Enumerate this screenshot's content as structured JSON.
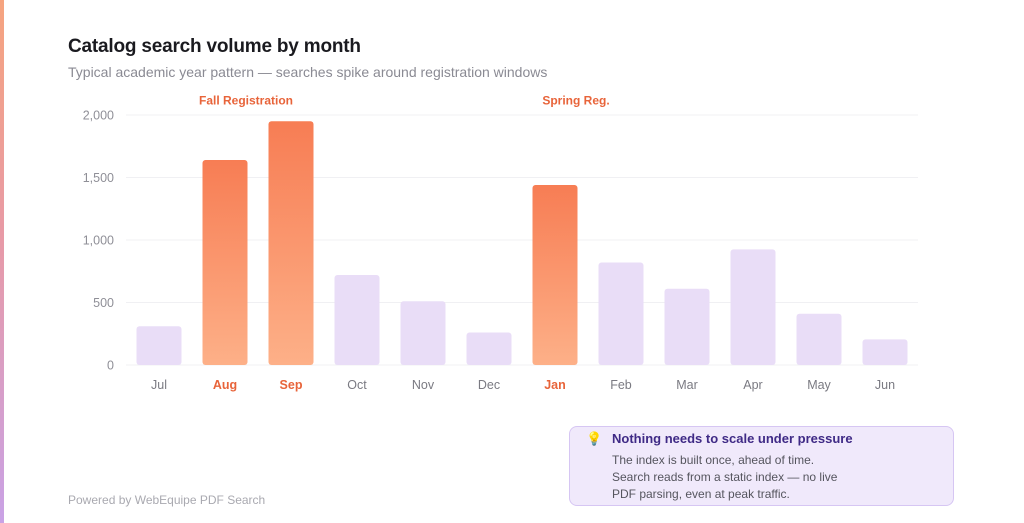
{
  "chart_data": {
    "type": "bar",
    "title": "Catalog search volume by month",
    "subtitle": "Typical academic year pattern — searches spike around registration windows",
    "categories": [
      "Jul",
      "Aug",
      "Sep",
      "Oct",
      "Nov",
      "Dec",
      "Jan",
      "Feb",
      "Mar",
      "Apr",
      "May",
      "Jun"
    ],
    "values": [
      310,
      1640,
      1950,
      720,
      510,
      260,
      1440,
      820,
      610,
      925,
      410,
      205
    ],
    "highlighted": [
      "Aug",
      "Sep",
      "Jan"
    ],
    "yticks": [
      "0",
      "500",
      "1,000",
      "1,500",
      "2,000"
    ],
    "ytick_values": [
      0,
      500,
      1000,
      1500,
      2000
    ],
    "ylim": [
      0,
      2000
    ],
    "xlabel": "",
    "ylabel": "",
    "grid": true,
    "annotations": [
      {
        "text": "Fall Registration",
        "category": "Aug"
      },
      {
        "text": "Spring Reg.",
        "category": "Jan"
      }
    ],
    "colors": {
      "highlight_top": "#f77d54",
      "highlight_bottom": "#fdb088",
      "base_bar": "#e9ddf7",
      "highlight_label": "#e8643a",
      "axis_label": "#7a7a82",
      "grid": "#f0f0f3"
    }
  },
  "callout": {
    "icon": "lightbulb-icon",
    "title": "Nothing needs to scale under pressure",
    "lines": [
      "The index is built once, ahead of time.",
      "Search reads from a static index — no live",
      "PDF parsing, even at peak traffic."
    ]
  },
  "footer": {
    "text": "Powered by WebEquipe PDF Search"
  }
}
